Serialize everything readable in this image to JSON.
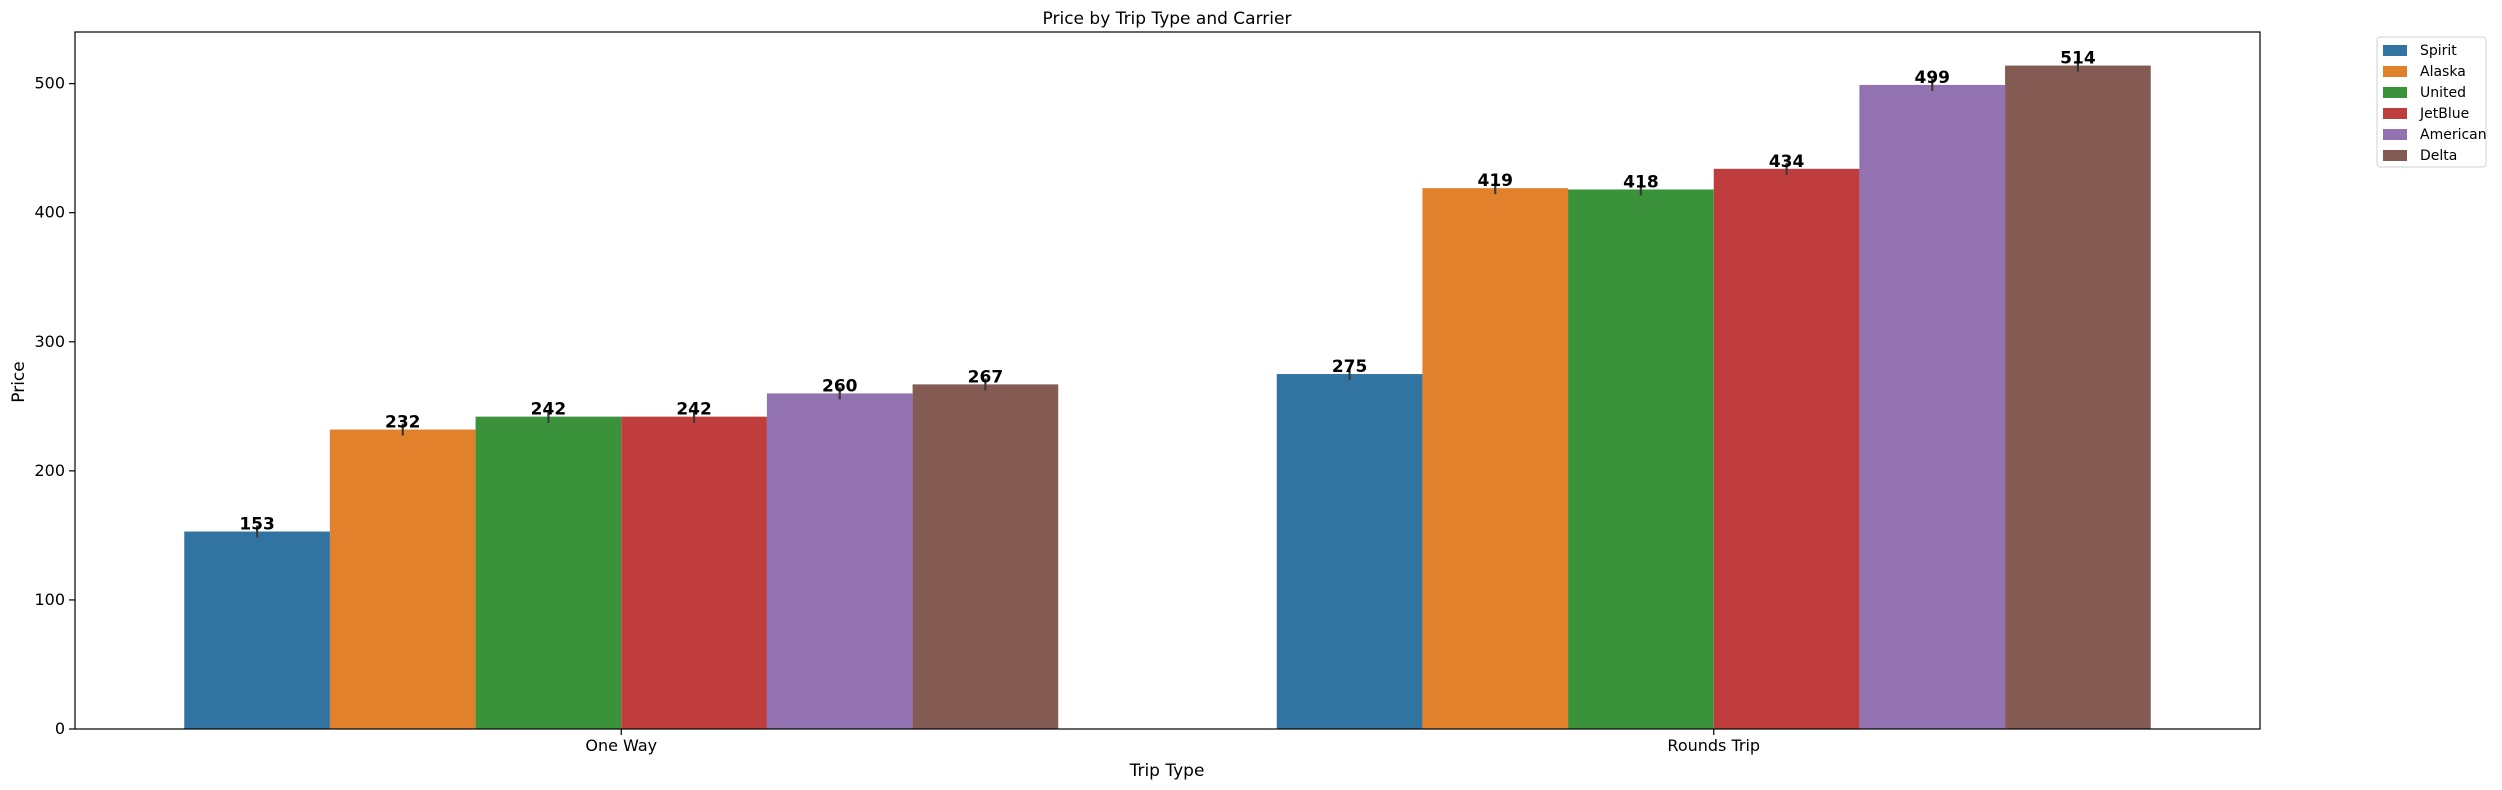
{
  "chart_data": {
    "type": "bar",
    "title": "Price by Trip Type and Carrier",
    "xlabel": "Trip Type",
    "ylabel": "Price",
    "categories": [
      "One Way",
      "Rounds Trip"
    ],
    "ylim": [
      0,
      540
    ],
    "yticks": [
      0,
      100,
      200,
      300,
      400,
      500
    ],
    "grid": false,
    "legend_position": "outside-top-right",
    "series": [
      {
        "name": "Spirit",
        "values": [
          153,
          275
        ],
        "labels": [
          "153",
          "275"
        ],
        "color": "#3274a1"
      },
      {
        "name": "Alaska",
        "values": [
          232,
          419
        ],
        "labels": [
          "232",
          "419"
        ],
        "color": "#e1812c"
      },
      {
        "name": "United",
        "values": [
          242,
          418
        ],
        "labels": [
          "242",
          "418"
        ],
        "color": "#3a923a"
      },
      {
        "name": "JetBlue",
        "values": [
          242,
          434
        ],
        "labels": [
          "242",
          "434"
        ],
        "color": "#c03d3e"
      },
      {
        "name": "American",
        "values": [
          260,
          499
        ],
        "labels": [
          "260",
          "499"
        ],
        "color": "#9372b2"
      },
      {
        "name": "Delta",
        "values": [
          267,
          514
        ],
        "labels": [
          "267",
          "514"
        ],
        "color": "#845b53"
      }
    ]
  }
}
